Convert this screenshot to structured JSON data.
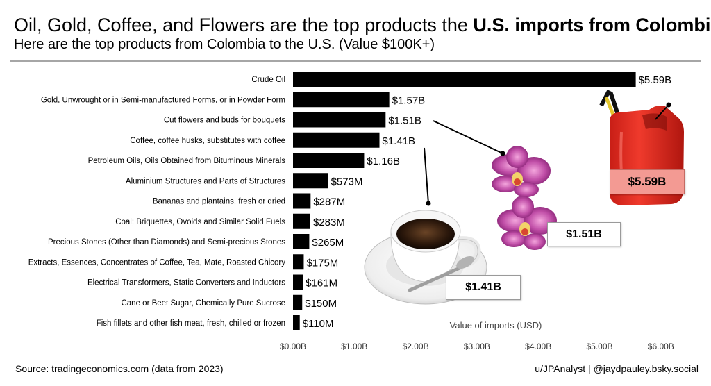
{
  "header": {
    "title_lead": "Oil, Gold, Coffee, and Flowers are the top products the ",
    "title_bold": "U.S. imports from Colombia",
    "title_end": ".",
    "subtitle": "Here are the top products from Colombia to the U.S. (Value $100K+)"
  },
  "footer": {
    "source": "Source: tradingeconomics.com (data from 2023)",
    "credit": "u/JPAnalyst | @jaydpauley.bsky.social"
  },
  "callouts": {
    "oil": "$5.59B",
    "flowers": "$1.51B",
    "coffee": "$1.41B"
  },
  "chart_data": {
    "type": "bar",
    "orientation": "horizontal",
    "categories": [
      "Crude Oil",
      "Gold, Unwrought or in Semi-manufactured Forms, or in Powder Form",
      "Cut flowers and buds for bouquets",
      "Coffee, coffee husks, substitutes with coffee",
      "Petroleum Oils, Oils Obtained from Bituminous Minerals",
      "Aluminium Structures and Parts of Structures",
      "Bananas and plantains, fresh or dried",
      "Coal; Briquettes, Ovoids and Similar Solid Fuels",
      "Precious Stones (Other than Diamonds) and Semi-precious Stones",
      "Extracts, Essences, Concentrates of Coffee, Tea, Mate, Roasted Chicory",
      "Electrical Transformers, Static Converters and Inductors",
      "Cane or Beet Sugar, Chemically Pure Sucrose",
      "Fish fillets and other fish meat, fresh, chilled or frozen"
    ],
    "values": [
      5.59,
      1.57,
      1.51,
      1.41,
      1.16,
      0.573,
      0.287,
      0.283,
      0.265,
      0.175,
      0.161,
      0.15,
      0.11
    ],
    "data_labels": [
      "$5.59B",
      "$1.57B",
      "$1.51B",
      "$1.41B",
      "$1.16B",
      "$573M",
      "$287M",
      "$283M",
      "$265M",
      "$175M",
      "$161M",
      "$150M",
      "$110M"
    ],
    "xlabel": "Value of imports (USD)",
    "ylabel": "",
    "xlim": [
      0,
      6
    ],
    "xticks": [
      "$0.00B",
      "$1.00B",
      "$2.00B",
      "$3.00B",
      "$4.00B",
      "$5.00B",
      "$6.00B"
    ],
    "bar_color": "#000000",
    "grid": false
  }
}
